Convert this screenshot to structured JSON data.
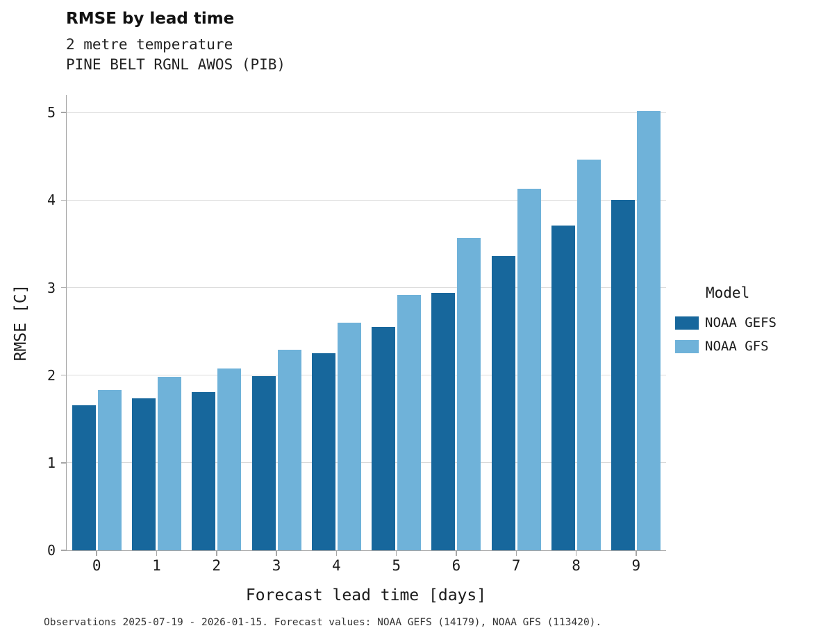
{
  "caption": "Observations 2025-07-19 - 2026-01-15. Forecast values: NOAA GEFS (14179), NOAA GFS (113420).",
  "chart_data": {
    "type": "bar",
    "title": "RMSE by lead time",
    "subtitle": [
      "2 metre temperature",
      "PINE BELT RGNL AWOS (PIB)"
    ],
    "xlabel": "Forecast lead time [days]",
    "ylabel": "RMSE [C]",
    "categories": [
      0,
      1,
      2,
      3,
      4,
      5,
      6,
      7,
      8,
      9
    ],
    "series": [
      {
        "name": "NOAA GEFS",
        "color": "#17679c",
        "values": [
          1.66,
          1.74,
          1.81,
          1.99,
          2.25,
          2.55,
          2.94,
          3.36,
          3.71,
          4.0
        ]
      },
      {
        "name": "NOAA GFS",
        "color": "#6fb2d9",
        "values": [
          1.83,
          1.98,
          2.08,
          2.29,
          2.6,
          2.92,
          3.57,
          4.13,
          4.46,
          5.02
        ]
      }
    ],
    "ylim": [
      0,
      5.2
    ],
    "yticks": [
      0,
      1,
      2,
      3,
      4,
      5
    ],
    "grid": "horizontal",
    "legend": {
      "title": "Model",
      "position": "right"
    }
  }
}
